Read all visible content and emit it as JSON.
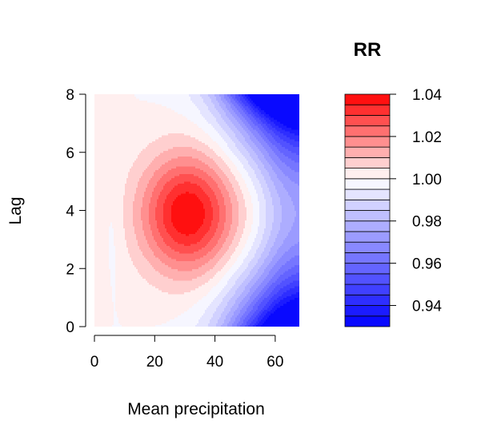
{
  "chart_data": {
    "type": "heatmap",
    "plot_kind": "filled contour",
    "title": "",
    "xlabel": "Mean precipitation",
    "ylabel": "Lag",
    "xlim": [
      0,
      68
    ],
    "ylim": [
      0,
      8
    ],
    "x_ticks": [
      0,
      20,
      40,
      60
    ],
    "y_ticks": [
      0,
      2,
      4,
      6,
      8
    ],
    "grid": false,
    "colormap": "blue-white-red",
    "colors": {
      "low": "#0000ff",
      "mid": "#ffffff",
      "high": "#ff0000"
    },
    "peak": {
      "x": 31,
      "y": 3.9,
      "value": 1.04
    },
    "trough": {
      "x": 68,
      "y": 8,
      "value": 0.93
    },
    "legend": {
      "title": "RR",
      "position": "right",
      "range": [
        0.93,
        1.04
      ],
      "ticks": [
        0.94,
        0.96,
        0.98,
        1.0,
        1.02,
        1.04
      ],
      "tick_labels": [
        "0.94",
        "0.96",
        "0.98",
        "1.00",
        "1.02",
        "1.04"
      ],
      "levels": [
        0.93,
        0.935,
        0.94,
        0.945,
        0.95,
        0.955,
        0.96,
        0.965,
        0.97,
        0.975,
        0.98,
        0.985,
        0.99,
        0.995,
        1.0,
        1.005,
        1.01,
        1.015,
        1.02,
        1.025,
        1.03,
        1.035,
        1.04
      ]
    }
  }
}
